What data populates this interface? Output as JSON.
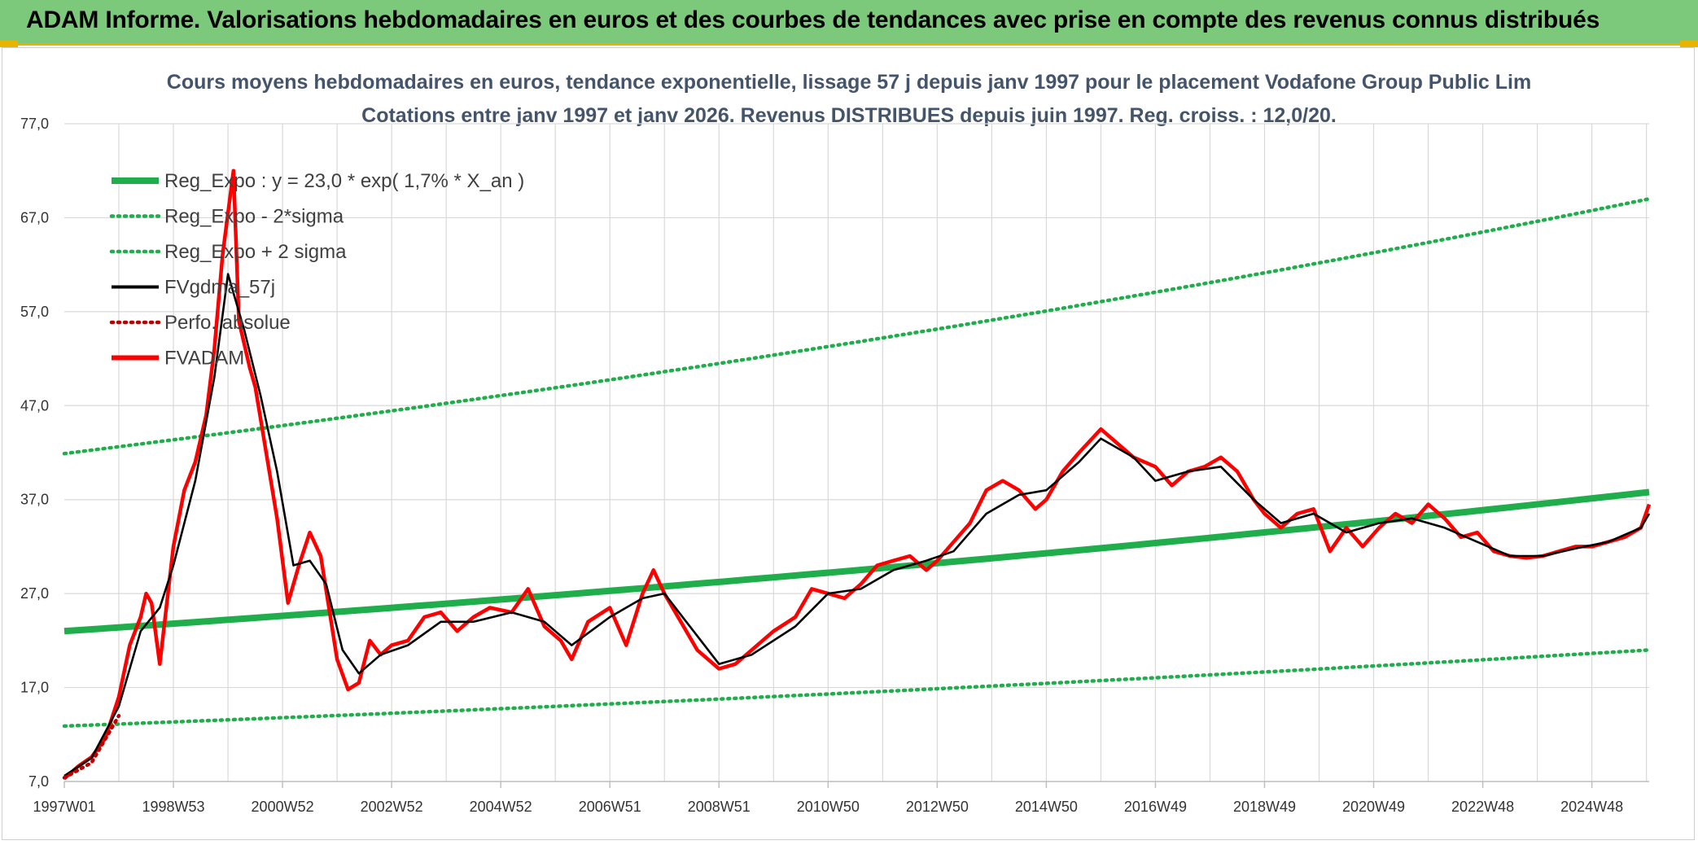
{
  "banner": {
    "title": "ADAM Informe. Valorisations hebdomadaires en euros et des courbes de tendances avec prise en compte des revenus connus distribués"
  },
  "colors": {
    "banner_bg": "#7dc97b",
    "accent": "#e9b400",
    "reg_green": "#1fae4b",
    "fvadam_red": "#ff0000",
    "fvgdma_black": "#000000",
    "perfo_red": "#c00000"
  },
  "chart_data": {
    "type": "line",
    "title_line1": "Cours moyens hebdomadaires en euros, tendance exponentielle, lissage 57 j depuis janv 1997 pour le placement Vodafone Group Public Lim",
    "title_line2": "Cotations entre janv 1997 et janv 2026. Revenus DISTRIBUES depuis juin 1997. Reg. croiss. : 12,0/20.",
    "ylim": [
      7,
      77
    ],
    "y_ticks": [
      "7,0",
      "17,0",
      "27,0",
      "37,0",
      "47,0",
      "57,0",
      "67,0",
      "77,0"
    ],
    "y_tick_values": [
      7,
      17,
      27,
      37,
      47,
      57,
      67,
      77
    ],
    "x_range": [
      1997.0,
      2026.05
    ],
    "x_ticks": [
      "1997W01",
      "1998W53",
      "2000W52",
      "2002W52",
      "2004W52",
      "2006W51",
      "2008W51",
      "2010W50",
      "2012W50",
      "2014W50",
      "2016W49",
      "2018W49",
      "2020W49",
      "2022W48",
      "2024W48"
    ],
    "x_tick_years": [
      1997.0,
      1999.0,
      2001.0,
      2003.0,
      2005.0,
      2007.0,
      2009.0,
      2011.0,
      2013.0,
      2015.0,
      2017.0,
      2019.0,
      2021.0,
      2023.0,
      2025.0
    ],
    "grid": true,
    "legend_position": "top-left",
    "legend": [
      {
        "label": "Reg_Expo : y = 23,0 * exp( 1,7% *  X_an )",
        "style": "solid-thick",
        "color": "#1fae4b"
      },
      {
        "label": "Reg_Expo - 2*sigma",
        "style": "dotted",
        "color": "#1fae4b"
      },
      {
        "label": "Reg_Expo + 2 sigma",
        "style": "dotted",
        "color": "#1fae4b"
      },
      {
        "label": "FVgdma_57j",
        "style": "solid",
        "color": "#000000"
      },
      {
        "label": "Perfo. absolue",
        "style": "dotted",
        "color": "#c00000"
      },
      {
        "label": "FVADAM",
        "style": "solid-thick",
        "color": "#ff0000"
      }
    ],
    "series": [
      {
        "name": "Reg_Expo : y = 23,0 * exp( 1,7% *  X_an )",
        "x": [
          1997.0,
          2026.05
        ],
        "y": [
          23.0,
          37.8
        ]
      },
      {
        "name": "Reg_Expo - 2*sigma",
        "x": [
          1997.0,
          2026.05
        ],
        "y": [
          12.9,
          21.0
        ]
      },
      {
        "name": "Reg_Expo + 2 sigma",
        "x": [
          1997.0,
          2026.05
        ],
        "y": [
          41.9,
          69.0
        ]
      },
      {
        "name": "FVADAM",
        "x": [
          1997.0,
          1997.25,
          1997.5,
          1997.75,
          1998.0,
          1998.2,
          1998.4,
          1998.5,
          1998.6,
          1998.75,
          1999.0,
          1999.2,
          1999.4,
          1999.6,
          1999.75,
          1999.9,
          2000.1,
          2000.2,
          2000.4,
          2000.5,
          2000.7,
          2000.9,
          2001.1,
          2001.3,
          2001.5,
          2001.7,
          2001.85,
          2002.0,
          2002.2,
          2002.4,
          2002.6,
          2002.8,
          2003.0,
          2003.3,
          2003.6,
          2003.9,
          2004.2,
          2004.5,
          2004.8,
          2005.2,
          2005.5,
          2005.8,
          2006.1,
          2006.3,
          2006.6,
          2007.0,
          2007.3,
          2007.6,
          2007.8,
          2008.0,
          2008.3,
          2008.6,
          2009.0,
          2009.3,
          2009.6,
          2010.0,
          2010.4,
          2010.7,
          2011.0,
          2011.3,
          2011.6,
          2011.9,
          2012.2,
          2012.5,
          2012.8,
          2013.0,
          2013.3,
          2013.6,
          2013.9,
          2014.2,
          2014.5,
          2014.8,
          2015.0,
          2015.3,
          2015.6,
          2016.0,
          2016.3,
          2016.6,
          2017.0,
          2017.3,
          2017.6,
          2017.9,
          2018.2,
          2018.5,
          2018.8,
          2019.0,
          2019.3,
          2019.6,
          2019.9,
          2020.2,
          2020.5,
          2020.8,
          2021.1,
          2021.4,
          2021.7,
          2022.0,
          2022.3,
          2022.6,
          2022.9,
          2023.2,
          2023.5,
          2023.8,
          2024.1,
          2024.4,
          2024.7,
          2025.0,
          2025.3,
          2025.6,
          2025.9,
          2026.05
        ],
        "y": [
          7.3,
          8.6,
          9.6,
          11.6,
          16.0,
          21.5,
          24.5,
          27.0,
          26.0,
          19.5,
          32.0,
          38.0,
          41.0,
          46.0,
          53.0,
          63.0,
          72.0,
          56.0,
          51.0,
          49.0,
          42.0,
          35.0,
          26.0,
          30.0,
          33.5,
          31.0,
          25.5,
          20.0,
          16.8,
          17.5,
          22.0,
          20.5,
          21.5,
          22.0,
          24.5,
          25.0,
          23.0,
          24.5,
          25.5,
          25.0,
          27.5,
          23.5,
          22.0,
          20.0,
          24.0,
          25.5,
          21.5,
          27.0,
          29.5,
          27.0,
          24.0,
          21.0,
          19.0,
          19.5,
          21.0,
          23.0,
          24.5,
          27.5,
          27.0,
          26.5,
          28.0,
          30.0,
          30.5,
          31.0,
          29.5,
          30.5,
          32.5,
          34.5,
          38.0,
          39.0,
          38.0,
          36.0,
          37.0,
          40.0,
          42.0,
          44.5,
          43.0,
          41.5,
          40.5,
          38.5,
          40.0,
          40.5,
          41.5,
          40.0,
          37.0,
          35.5,
          34.0,
          35.5,
          36.0,
          31.5,
          34.0,
          32.0,
          34.0,
          35.5,
          34.5,
          36.5,
          35.0,
          33.0,
          33.5,
          31.5,
          31.0,
          30.8,
          31.0,
          31.5,
          32.0,
          32.0,
          32.5,
          33.0,
          34.0,
          36.5
        ]
      },
      {
        "name": "FVgdma_57j",
        "x": [
          1997.0,
          1997.5,
          1998.0,
          1998.4,
          1998.75,
          1999.0,
          1999.4,
          1999.75,
          2000.0,
          2000.3,
          2000.6,
          2000.9,
          2001.2,
          2001.5,
          2001.8,
          2002.1,
          2002.4,
          2002.8,
          2003.3,
          2003.9,
          2004.5,
          2005.2,
          2005.8,
          2006.3,
          2007.0,
          2007.6,
          2008.0,
          2008.6,
          2009.0,
          2009.6,
          2010.4,
          2011.0,
          2011.6,
          2012.2,
          2012.8,
          2013.3,
          2013.9,
          2014.5,
          2015.0,
          2015.6,
          2016.0,
          2016.6,
          2017.0,
          2017.6,
          2018.2,
          2018.8,
          2019.3,
          2019.9,
          2020.5,
          2021.1,
          2021.7,
          2022.3,
          2022.9,
          2023.5,
          2024.1,
          2024.7,
          2025.3,
          2025.9,
          2026.05
        ],
        "y": [
          7.6,
          9.5,
          15.0,
          23.0,
          25.5,
          30.0,
          39.0,
          50.0,
          61.0,
          55.0,
          48.0,
          40.0,
          30.0,
          30.5,
          28.0,
          21.0,
          18.5,
          20.5,
          21.5,
          24.0,
          24.0,
          25.0,
          24.0,
          21.5,
          24.5,
          26.5,
          27.0,
          22.5,
          19.5,
          20.5,
          23.5,
          27.0,
          27.5,
          29.5,
          30.5,
          31.5,
          35.5,
          37.5,
          38.0,
          41.0,
          43.5,
          41.5,
          39.0,
          40.0,
          40.5,
          37.0,
          34.5,
          35.5,
          33.5,
          34.5,
          35.0,
          34.0,
          32.5,
          31.0,
          31.0,
          31.8,
          32.5,
          34.0,
          35.5
        ]
      },
      {
        "name": "Perfo. absolue",
        "x": [
          1997.0,
          1997.5,
          1998.0
        ],
        "y": [
          7.4,
          9.0,
          14.0
        ]
      }
    ]
  }
}
